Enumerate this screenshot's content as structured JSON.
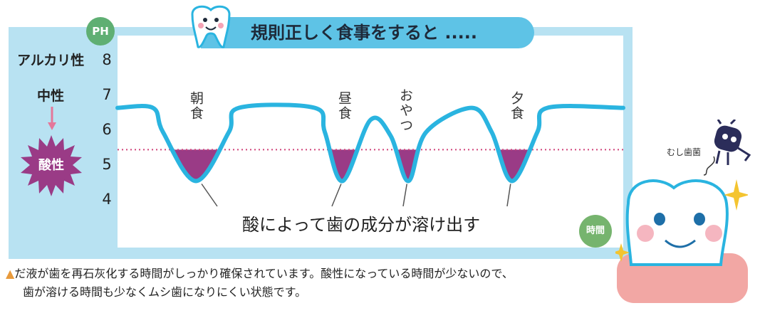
{
  "title": "規則正しく食事をすると .....",
  "ph_badge": "PH",
  "time_badge": "時間",
  "side_labels": {
    "alkaline": "アルカリ性",
    "neutral": "中性",
    "acidic": "酸性"
  },
  "dissolve_text": "酸によって歯の成分が溶け出す",
  "meal_labels": {
    "breakfast": "朝食",
    "lunch": "昼食",
    "snack": "おやつ",
    "dinner": "夕食"
  },
  "germ_label": "むし歯菌",
  "footnote": {
    "marker": "▲",
    "line1": "だ液が歯を再石灰化する時間がしっかり確保されています。酸性になっている時間が少ないので、",
    "line2": "歯が溶ける時間も少なくムシ歯になりにくい状態です。"
  },
  "colors": {
    "curve": "#2ab4e0",
    "acid_fill": "#9a3b86",
    "threshold": "#d0437a",
    "frame": "#b8e2f2"
  },
  "chart_data": {
    "type": "line",
    "ylabel": "PH",
    "xlabel": "時間",
    "y_ticks": [
      "8",
      "7",
      "6",
      "5",
      "4"
    ],
    "ylim": [
      3.5,
      8.5
    ],
    "critical_ph": 5.4,
    "series": [
      {
        "values": [
          [
            0,
            6.6
          ],
          [
            7,
            6.6
          ],
          [
            9,
            5.9
          ],
          [
            15.5,
            4.5
          ],
          [
            22,
            5.9
          ],
          [
            24,
            6.6
          ],
          [
            39,
            6.6
          ],
          [
            41,
            5.9
          ],
          [
            44.5,
            4.5
          ],
          [
            50,
            6.25
          ],
          [
            54,
            5.8
          ],
          [
            57.5,
            4.5
          ],
          [
            61,
            5.9
          ],
          [
            70,
            6.6
          ],
          [
            74,
            5.9
          ],
          [
            78,
            4.5
          ],
          [
            83,
            5.9
          ],
          [
            85,
            6.6
          ],
          [
            100,
            6.6
          ]
        ]
      }
    ],
    "events": [
      "朝食",
      "昼食",
      "おやつ",
      "夕食"
    ]
  }
}
